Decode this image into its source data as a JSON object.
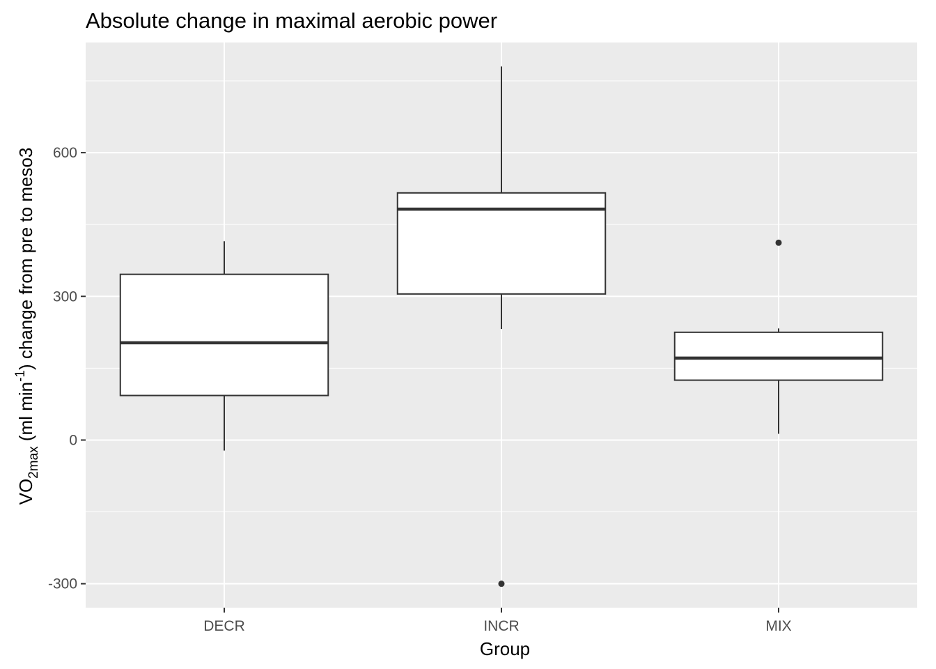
{
  "chart_data": {
    "type": "boxplot",
    "title": "Absolute change in maximal aerobic power",
    "xlabel": "Group",
    "ylabel": {
      "prefix": "VO",
      "sub": "2max",
      "middle": " (ml min",
      "sup": "-1",
      "suffix": ") change from pre to meso3"
    },
    "categories": [
      "DECR",
      "INCR",
      "MIX"
    ],
    "ylim": [
      -350,
      830
    ],
    "yticks": [
      -300,
      0,
      300,
      600
    ],
    "ytick_labels": [
      "-300",
      "0",
      "300",
      "600"
    ],
    "grid": true,
    "colors": {
      "panel": "#ebebeb",
      "grid": "#ffffff",
      "box_fill": "#ffffff",
      "box_line": "#333333",
      "outlier": "#333333",
      "tick_text": "#4d4d4d"
    },
    "boxes": [
      {
        "group": "DECR",
        "whisker_low": -22,
        "q1": 93,
        "median": 203,
        "q3": 346,
        "whisker_high": 415,
        "outliers": []
      },
      {
        "group": "INCR",
        "whisker_low": 232,
        "q1": 305,
        "median": 482,
        "q3": 516,
        "whisker_high": 780,
        "outliers": [
          -300
        ]
      },
      {
        "group": "MIX",
        "whisker_low": 13,
        "q1": 125,
        "median": 171,
        "q3": 225,
        "whisker_high": 233,
        "outliers": [
          412
        ]
      }
    ]
  }
}
